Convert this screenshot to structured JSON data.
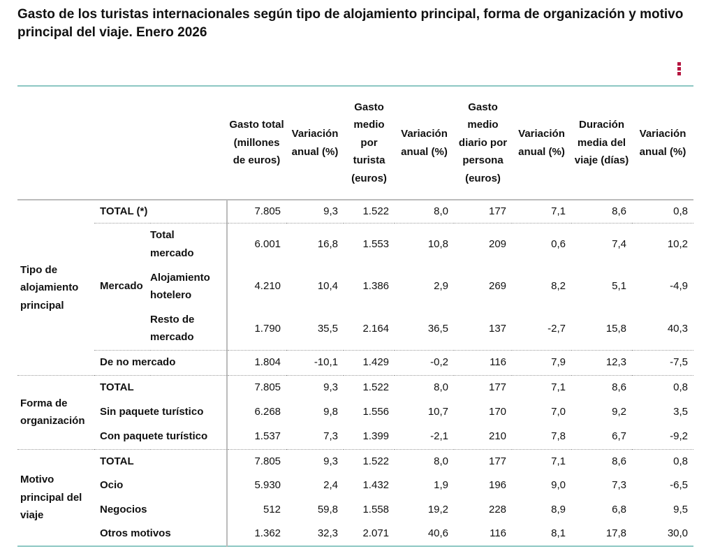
{
  "title": "Gasto de los turistas internacionales según tipo de alojamiento principal, forma de organización y motivo principal del viaje. Enero 2026",
  "menu_icon": "vertical-dots-icon",
  "colors": {
    "accent": "#b5153f",
    "border": "#8cc7c3"
  },
  "headers": [
    "Gasto total (millones de euros)",
    "Variación anual (%)",
    "Gasto medio por turista (euros)",
    "Variación anual (%)",
    "Gasto medio diario por persona (euros)",
    "Variación anual (%)",
    "Duración media del viaje (días)",
    "Variación anual (%)"
  ],
  "groups": [
    {
      "label": "Tipo de alojamiento principal",
      "subgroup": "Mercado",
      "rows": [
        {
          "label": "TOTAL (*)",
          "values": [
            "7.805",
            "9,3",
            "1.522",
            "8,0",
            "177",
            "7,1",
            "8,6",
            "0,8"
          ]
        },
        {
          "label": "Total mercado",
          "values": [
            "6.001",
            "16,8",
            "1.553",
            "10,8",
            "209",
            "0,6",
            "7,4",
            "10,2"
          ]
        },
        {
          "label": "Alojamiento hotelero",
          "values": [
            "4.210",
            "10,4",
            "1.386",
            "2,9",
            "269",
            "8,2",
            "5,1",
            "-4,9"
          ]
        },
        {
          "label": "Resto de mercado",
          "values": [
            "1.790",
            "35,5",
            "2.164",
            "36,5",
            "137",
            "-2,7",
            "15,8",
            "40,3"
          ]
        },
        {
          "label": "De no mercado",
          "values": [
            "1.804",
            "-10,1",
            "1.429",
            "-0,2",
            "116",
            "7,9",
            "12,3",
            "-7,5"
          ]
        }
      ]
    },
    {
      "label": "Forma de organización",
      "rows": [
        {
          "label": "TOTAL",
          "values": [
            "7.805",
            "9,3",
            "1.522",
            "8,0",
            "177",
            "7,1",
            "8,6",
            "0,8"
          ]
        },
        {
          "label": "Sin paquete turístico",
          "values": [
            "6.268",
            "9,8",
            "1.556",
            "10,7",
            "170",
            "7,0",
            "9,2",
            "3,5"
          ]
        },
        {
          "label": "Con paquete turístico",
          "values": [
            "1.537",
            "7,3",
            "1.399",
            "-2,1",
            "210",
            "7,8",
            "6,7",
            "-9,2"
          ]
        }
      ]
    },
    {
      "label": "Motivo principal del viaje",
      "rows": [
        {
          "label": "TOTAL",
          "values": [
            "7.805",
            "9,3",
            "1.522",
            "8,0",
            "177",
            "7,1",
            "8,6",
            "0,8"
          ]
        },
        {
          "label": "Ocio",
          "values": [
            "5.930",
            "2,4",
            "1.432",
            "1,9",
            "196",
            "9,0",
            "7,3",
            "-6,5"
          ]
        },
        {
          "label": "Negocios",
          "values": [
            "512",
            "59,8",
            "1.558",
            "19,2",
            "228",
            "8,9",
            "6,8",
            "9,5"
          ]
        },
        {
          "label": "Otros motivos",
          "values": [
            "1.362",
            "32,3",
            "2.071",
            "40,6",
            "116",
            "8,1",
            "17,8",
            "30,0"
          ]
        }
      ]
    }
  ]
}
